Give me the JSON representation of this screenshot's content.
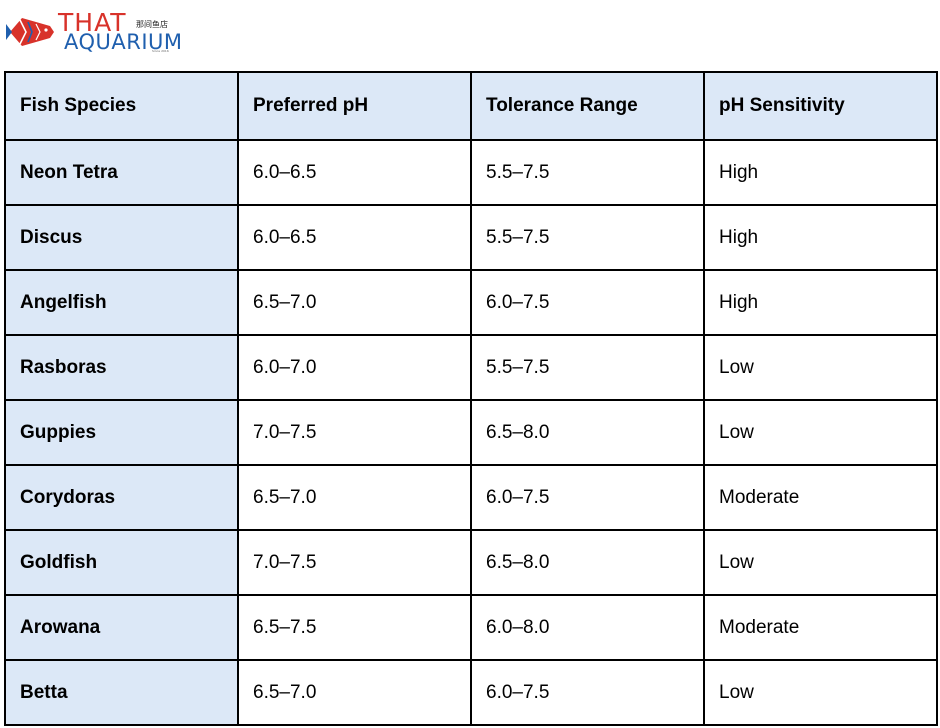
{
  "logo": {
    "line1": "THAT",
    "line2": "AQUARIUM",
    "chinese": "那间鱼店",
    "small_text": "Since 2016"
  },
  "table": {
    "headers": [
      "Fish Species",
      "Preferred pH",
      "Tolerance Range",
      "pH Sensitivity"
    ],
    "rows": [
      [
        "Neon Tetra",
        "6.0–6.5",
        "5.5–7.5",
        "High"
      ],
      [
        "Discus",
        "6.0–6.5",
        "5.5–7.5",
        "High"
      ],
      [
        "Angelfish",
        "6.5–7.0",
        "6.0–7.5",
        "High"
      ],
      [
        "Rasboras",
        "6.0–7.0",
        "5.5–7.5",
        "Low"
      ],
      [
        "Guppies",
        "7.0–7.5",
        "6.5–8.0",
        "Low"
      ],
      [
        "Corydoras",
        "6.5–7.0",
        "6.0–7.5",
        "Moderate"
      ],
      [
        "Goldfish",
        "7.0–7.5",
        "6.5–8.0",
        "Low"
      ],
      [
        "Arowana",
        "6.5–7.5",
        "6.0–8.0",
        "Moderate"
      ],
      [
        "Betta",
        "6.5–7.0",
        "6.0–7.5",
        "Low"
      ]
    ]
  },
  "colors": {
    "header_bg": "#dce8f7",
    "border": "#000000",
    "logo_red": "#d8322a",
    "logo_blue": "#1f5fae"
  }
}
